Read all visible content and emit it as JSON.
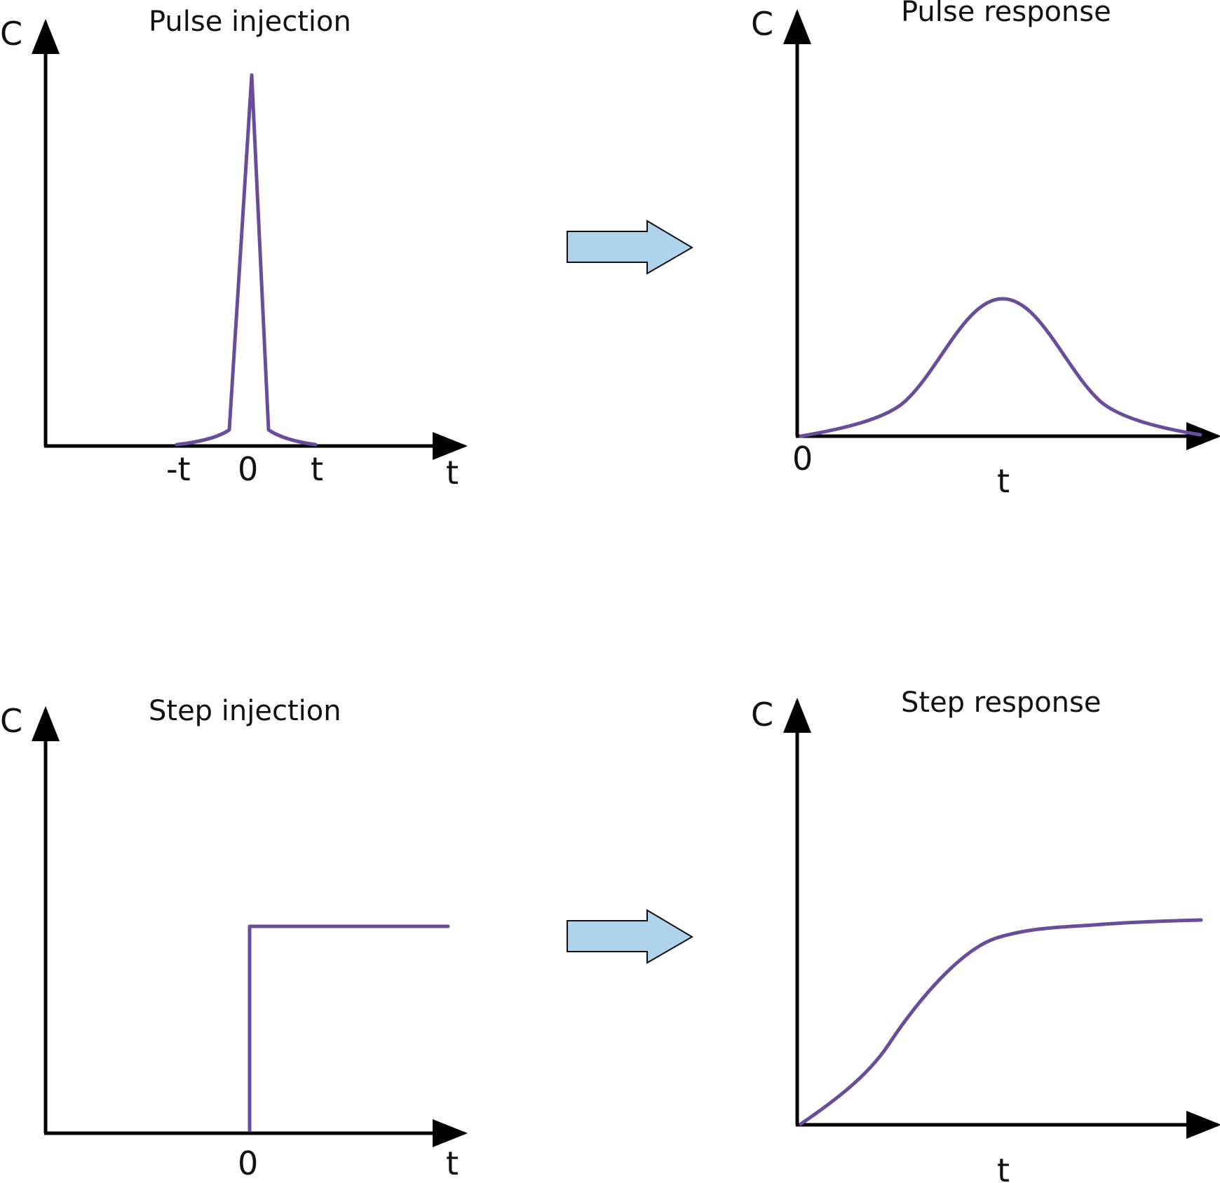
{
  "panels": {
    "pulse_injection": {
      "title": "Pulse injection",
      "y_label": "C",
      "x_label": "t",
      "ticks": [
        "-t",
        "0",
        "t"
      ]
    },
    "pulse_response": {
      "title": "Pulse response",
      "y_label": "C",
      "x_label": "t",
      "origin": "0"
    },
    "step_injection": {
      "title": "Step injection",
      "y_label": "C",
      "x_label": "t",
      "tick": "0"
    },
    "step_response": {
      "title": "Step response",
      "y_label": "C",
      "x_label": "t"
    }
  },
  "colors": {
    "curve": "#6a4c9c",
    "arrow_fill": "#afd3ea",
    "axis": "#000000"
  },
  "icons": {
    "transition_arrow": "right-arrow-icon"
  }
}
